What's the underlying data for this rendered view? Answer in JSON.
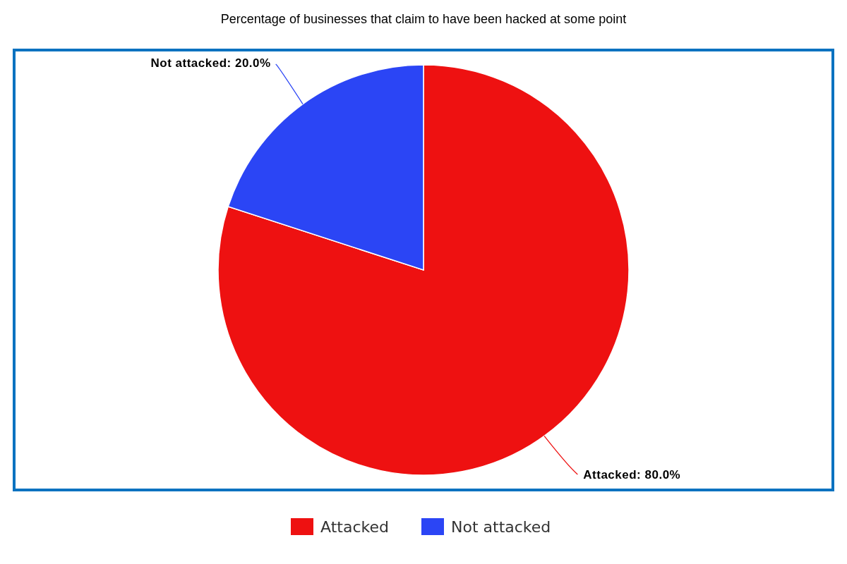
{
  "chart_data": {
    "type": "pie",
    "title": "Percentage of businesses that claim to have been hacked at some point",
    "categories": [
      "Attacked",
      "Not attacked"
    ],
    "values": [
      80,
      20
    ],
    "value_labels": [
      "Attacked: 80.0%",
      "Not attacked: 20.0%"
    ],
    "colors": [
      "#ee1111",
      "#2b45f5"
    ],
    "legend": "bottom"
  }
}
